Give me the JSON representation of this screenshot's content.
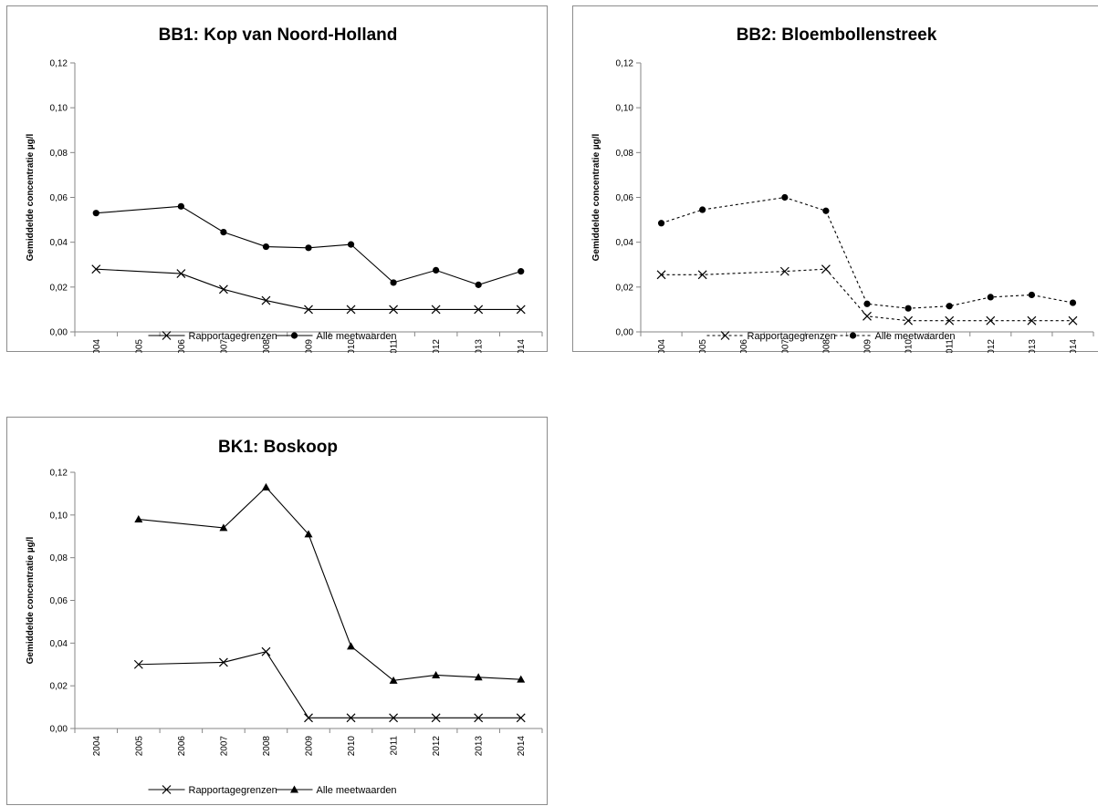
{
  "chart_data": [
    {
      "type": "line",
      "title": "BB1: Kop van Noord-Holland",
      "ylabel": "Gemiddelde concentratie µg/l",
      "xlabel": "",
      "ylim": [
        0,
        0.12
      ],
      "yticks": [
        "0,00",
        "0,02",
        "0,04",
        "0,06",
        "0,08",
        "0,10",
        "0,12"
      ],
      "categories": [
        "2004",
        "2005",
        "2006",
        "2007",
        "2008",
        "2009",
        "2010",
        "2011",
        "2012",
        "2013",
        "2014"
      ],
      "legend_position": "bottom",
      "line_style": "solid",
      "grid": false,
      "series": [
        {
          "name": "Rapportagegrenzen",
          "marker": "x",
          "values": [
            0.028,
            null,
            0.026,
            0.019,
            0.014,
            0.01,
            0.01,
            0.01,
            0.01,
            0.01,
            0.01
          ]
        },
        {
          "name": "Alle meetwaarden",
          "marker": "circle",
          "values": [
            0.053,
            null,
            0.056,
            0.0445,
            0.038,
            0.0375,
            0.039,
            0.022,
            0.0275,
            0.021,
            0.027
          ]
        }
      ]
    },
    {
      "type": "line",
      "title": "BB2: Bloembollenstreek",
      "ylabel": "Gemiddelde concentratie µg/l",
      "xlabel": "",
      "ylim": [
        0,
        0.12
      ],
      "yticks": [
        "0,00",
        "0,02",
        "0,04",
        "0,06",
        "0,08",
        "0,10",
        "0,12"
      ],
      "categories": [
        "2004",
        "2005",
        "2006",
        "2007",
        "2008",
        "2009",
        "2010",
        "2011",
        "2012",
        "2013",
        "2014"
      ],
      "legend_position": "bottom",
      "line_style": "dashed",
      "grid": false,
      "series": [
        {
          "name": "Rapportagegrenzen",
          "marker": "x",
          "values": [
            0.0255,
            0.0255,
            null,
            0.027,
            0.028,
            0.007,
            0.005,
            0.005,
            0.005,
            0.005,
            0.005
          ]
        },
        {
          "name": "Alle meetwaarden",
          "marker": "circle",
          "values": [
            0.0485,
            0.0545,
            null,
            0.06,
            0.054,
            0.0125,
            0.0105,
            0.0115,
            0.0155,
            0.0165,
            0.013
          ]
        }
      ]
    },
    {
      "type": "line",
      "title": "BK1: Boskoop",
      "ylabel": "Gemiddelde concentratie µg/l",
      "xlabel": "",
      "ylim": [
        0,
        0.12
      ],
      "yticks": [
        "0,00",
        "0,02",
        "0,04",
        "0,06",
        "0,08",
        "0,10",
        "0,12"
      ],
      "categories": [
        "2004",
        "2005",
        "2006",
        "2007",
        "2008",
        "2009",
        "2010",
        "2011",
        "2012",
        "2013",
        "2014"
      ],
      "legend_position": "bottom",
      "line_style": "solid",
      "grid": false,
      "series": [
        {
          "name": "Rapportagegrenzen",
          "marker": "x",
          "values": [
            null,
            0.03,
            null,
            0.031,
            0.036,
            0.005,
            0.005,
            0.005,
            0.005,
            0.005,
            0.005
          ]
        },
        {
          "name": "Alle meetwaarden",
          "marker": "triangle",
          "values": [
            null,
            0.098,
            null,
            0.094,
            0.113,
            0.091,
            0.0385,
            0.0225,
            0.025,
            0.024,
            0.023
          ]
        }
      ]
    }
  ]
}
